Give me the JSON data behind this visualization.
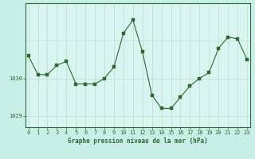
{
  "x": [
    0,
    1,
    2,
    3,
    4,
    5,
    6,
    7,
    8,
    9,
    10,
    11,
    12,
    13,
    14,
    15,
    16,
    17,
    18,
    19,
    20,
    21,
    22,
    23
  ],
  "y": [
    1030.6,
    1030.1,
    1030.1,
    1030.35,
    1030.45,
    1029.85,
    1029.85,
    1029.85,
    1030.0,
    1030.3,
    1031.2,
    1031.55,
    1030.7,
    1029.55,
    1029.2,
    1029.2,
    1029.5,
    1029.8,
    1030.0,
    1030.15,
    1030.8,
    1031.1,
    1031.05,
    1030.5
  ],
  "line_color": "#2d6a2d",
  "marker_color": "#2d6a2d",
  "bg_color": "#c8eee8",
  "plot_bg_color": "#d8f5f0",
  "grid_v_color": "#c0d8d4",
  "grid_h_color": "#c0d8d4",
  "xlabel": "Graphe pression niveau de la mer (hPa)",
  "yticks": [
    1029,
    1030
  ],
  "ylim": [
    1028.7,
    1032.0
  ],
  "xlim": [
    -0.3,
    23.3
  ],
  "tick_color": "#2d6a2d",
  "xlabel_color": "#2d6a2d",
  "border_color": "#2d6a2d",
  "bottom_bar_color": "#2d6a2d",
  "label_fontsize": 5.0,
  "xlabel_fontsize": 5.5
}
